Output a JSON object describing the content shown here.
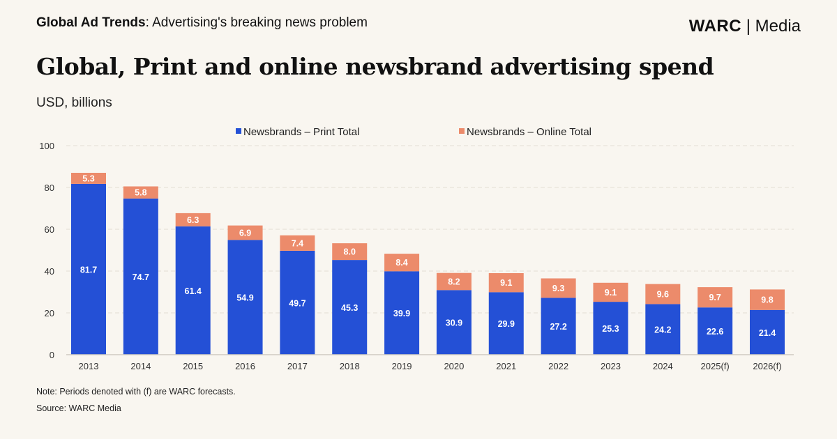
{
  "header": {
    "kicker_bold": "Global Ad Trends",
    "kicker_rest": ": Advertising's breaking news problem",
    "brand_bold": "WARC",
    "brand_rest": " | Media"
  },
  "chart_data": {
    "type": "bar",
    "stacked": true,
    "title": "Global, Print and online newsbrand advertising spend",
    "subtitle": "USD, billions",
    "categories": [
      "2013",
      "2014",
      "2015",
      "2016",
      "2017",
      "2018",
      "2019",
      "2020",
      "2021",
      "2022",
      "2023",
      "2024",
      "2025(f)",
      "2026(f)"
    ],
    "series": [
      {
        "name": "Newsbrands – Print Total",
        "color": "#2450d6",
        "values": [
          81.7,
          74.7,
          61.4,
          54.9,
          49.7,
          45.3,
          39.9,
          30.9,
          29.9,
          27.2,
          25.3,
          24.2,
          22.6,
          21.4
        ]
      },
      {
        "name": "Newsbrands – Online Total",
        "color": "#ec8b6b",
        "values": [
          5.3,
          5.8,
          6.3,
          6.9,
          7.4,
          8.0,
          8.4,
          8.2,
          9.1,
          9.3,
          9.1,
          9.6,
          9.7,
          9.8
        ]
      }
    ],
    "ylim": [
      0,
      100
    ],
    "yticks": [
      0,
      20,
      40,
      60,
      80,
      100
    ],
    "grid": true,
    "legend": "top-center"
  },
  "notes": {
    "note": "Note: Periods denoted with (f) are WARC forecasts.",
    "source": "Source: WARC Media"
  }
}
